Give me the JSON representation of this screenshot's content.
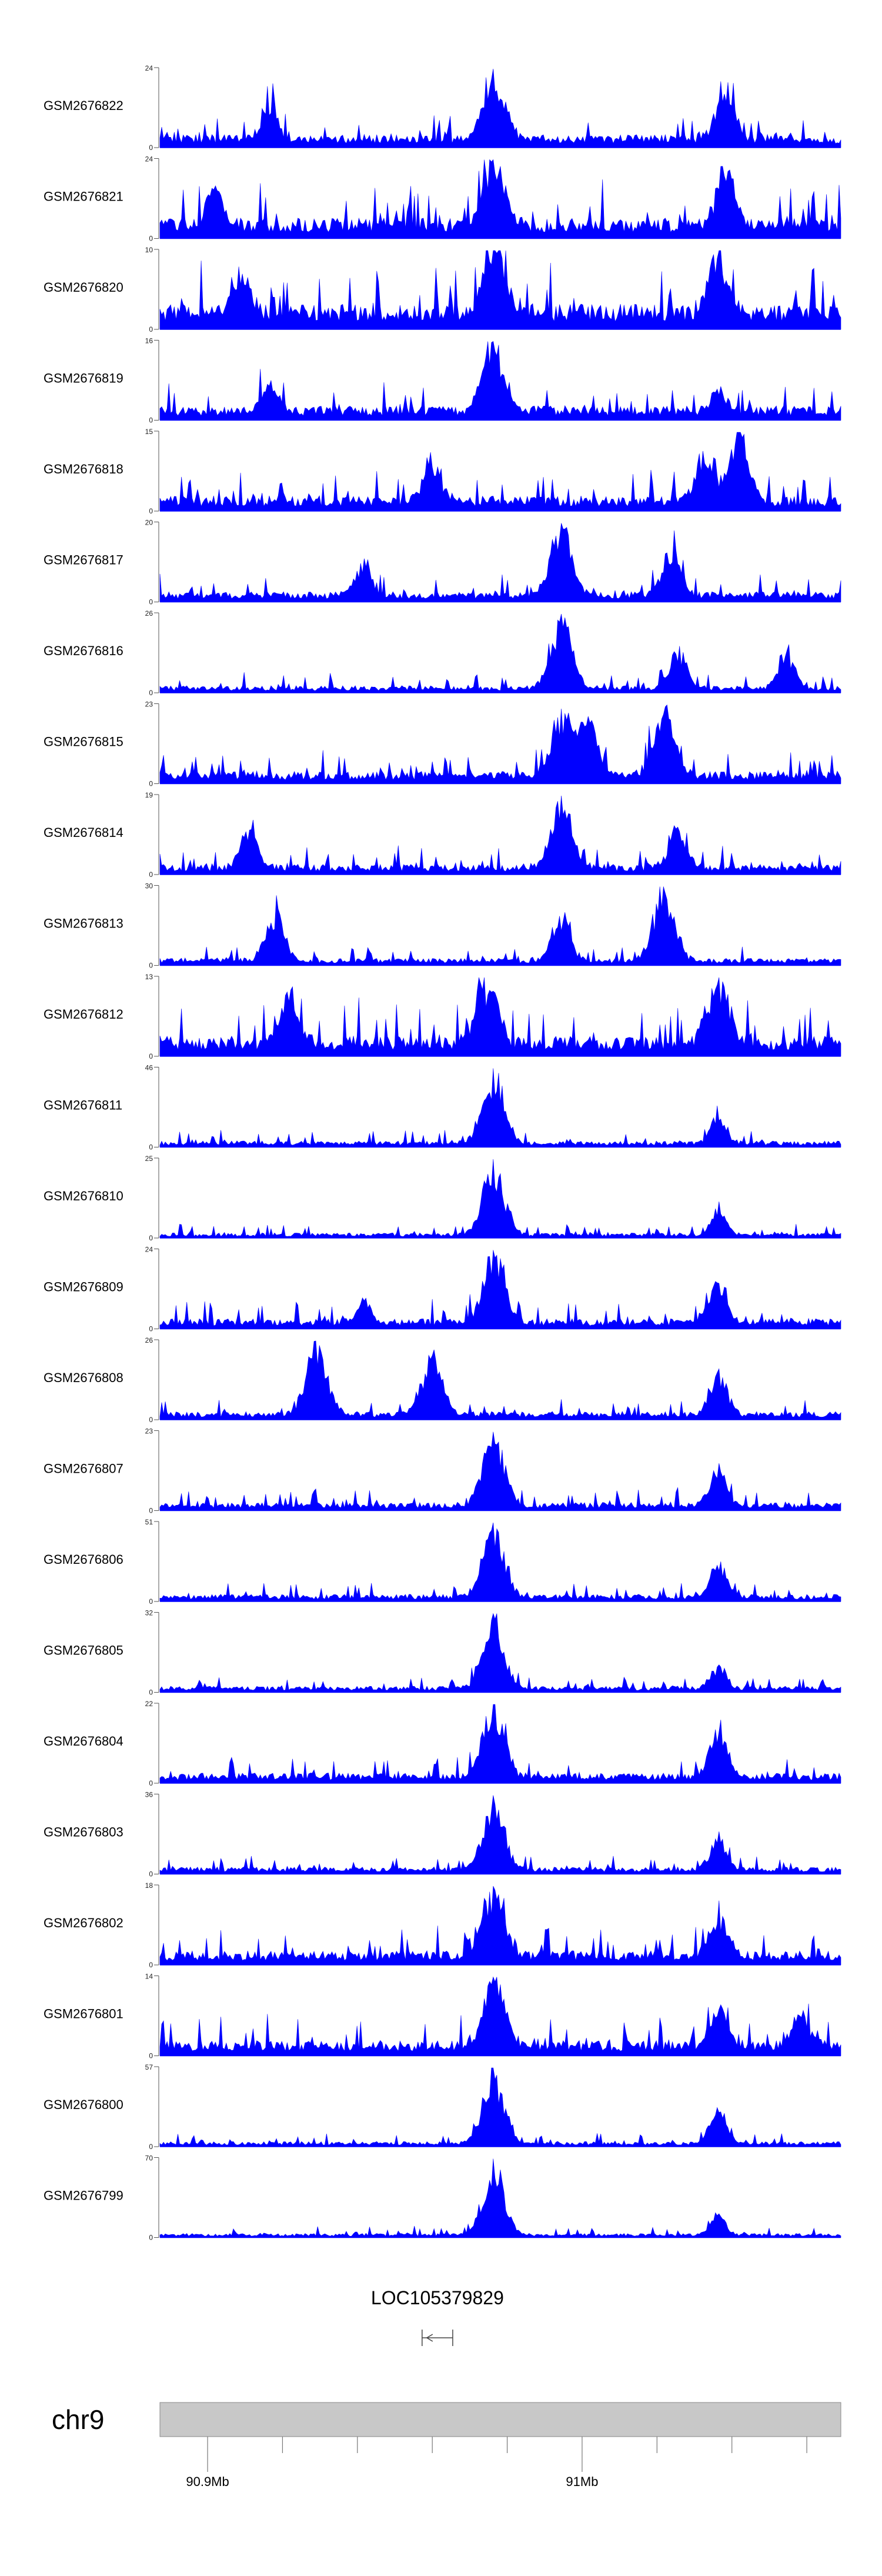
{
  "chart_data": {
    "type": "area",
    "description_color": "#0000ff",
    "tracks": [
      {
        "name": "GSM2676822",
        "ymax": 24,
        "ymin": 0,
        "peaks": [
          {
            "x": 0.49,
            "h": 1.0
          },
          {
            "x": 0.83,
            "h": 0.75
          },
          {
            "x": 0.16,
            "h": 0.42
          }
        ],
        "base": 0.13
      },
      {
        "name": "GSM2676821",
        "ymax": 24,
        "ymin": 0,
        "peaks": [
          {
            "x": 0.49,
            "h": 1.0
          },
          {
            "x": 0.83,
            "h": 0.8
          },
          {
            "x": 0.08,
            "h": 0.55
          }
        ],
        "base": 0.2
      },
      {
        "name": "GSM2676820",
        "ymax": 10,
        "ymin": 0,
        "peaks": [
          {
            "x": 0.49,
            "h": 1.0
          },
          {
            "x": 0.82,
            "h": 0.85
          },
          {
            "x": 0.12,
            "h": 0.55
          }
        ],
        "base": 0.25
      },
      {
        "name": "GSM2676819",
        "ymax": 16,
        "ymin": 0,
        "peaks": [
          {
            "x": 0.49,
            "h": 1.0
          },
          {
            "x": 0.82,
            "h": 0.35
          },
          {
            "x": 0.16,
            "h": 0.45
          }
        ],
        "base": 0.14
      },
      {
        "name": "GSM2676818",
        "ymax": 15,
        "ymin": 0,
        "peaks": [
          {
            "x": 0.85,
            "h": 1.0
          },
          {
            "x": 0.8,
            "h": 0.62
          },
          {
            "x": 0.4,
            "h": 0.6
          }
        ],
        "base": 0.15
      },
      {
        "name": "GSM2676817",
        "ymax": 20,
        "ymin": 0,
        "peaks": [
          {
            "x": 0.59,
            "h": 1.0
          },
          {
            "x": 0.75,
            "h": 0.7
          },
          {
            "x": 0.3,
            "h": 0.5
          }
        ],
        "base": 0.1
      },
      {
        "name": "GSM2676816",
        "ymax": 26,
        "ymin": 0,
        "peaks": [
          {
            "x": 0.59,
            "h": 1.0
          },
          {
            "x": 0.76,
            "h": 0.55
          },
          {
            "x": 0.92,
            "h": 0.5
          }
        ],
        "base": 0.07
      },
      {
        "name": "GSM2676815",
        "ymax": 23,
        "ymin": 0,
        "peaks": [
          {
            "x": 0.59,
            "h": 0.95
          },
          {
            "x": 0.74,
            "h": 1.0
          },
          {
            "x": 0.63,
            "h": 0.85
          }
        ],
        "base": 0.12
      },
      {
        "name": "GSM2676814",
        "ymax": 19,
        "ymin": 0,
        "peaks": [
          {
            "x": 0.59,
            "h": 1.0
          },
          {
            "x": 0.76,
            "h": 0.6
          },
          {
            "x": 0.13,
            "h": 0.55
          }
        ],
        "base": 0.1
      },
      {
        "name": "GSM2676813",
        "ymax": 30,
        "ymin": 0,
        "peaks": [
          {
            "x": 0.74,
            "h": 1.0
          },
          {
            "x": 0.59,
            "h": 0.65
          },
          {
            "x": 0.17,
            "h": 0.7
          }
        ],
        "base": 0.07
      },
      {
        "name": "GSM2676812",
        "ymax": 13,
        "ymin": 0,
        "peaks": [
          {
            "x": 0.82,
            "h": 1.0
          },
          {
            "x": 0.48,
            "h": 0.95
          },
          {
            "x": 0.19,
            "h": 0.7
          }
        ],
        "base": 0.2
      },
      {
        "name": "GSM2676811",
        "ymax": 46,
        "ymin": 0,
        "peaks": [
          {
            "x": 0.49,
            "h": 1.0
          },
          {
            "x": 0.82,
            "h": 0.4
          }
        ],
        "base": 0.06
      },
      {
        "name": "GSM2676810",
        "ymax": 25,
        "ymin": 0,
        "peaks": [
          {
            "x": 0.49,
            "h": 1.0
          },
          {
            "x": 0.82,
            "h": 0.35
          }
        ],
        "base": 0.05
      },
      {
        "name": "GSM2676809",
        "ymax": 24,
        "ymin": 0,
        "peaks": [
          {
            "x": 0.49,
            "h": 1.0
          },
          {
            "x": 0.82,
            "h": 0.6
          },
          {
            "x": 0.3,
            "h": 0.3
          }
        ],
        "base": 0.1
      },
      {
        "name": "GSM2676808",
        "ymax": 26,
        "ymin": 0,
        "peaks": [
          {
            "x": 0.23,
            "h": 1.0
          },
          {
            "x": 0.4,
            "h": 0.9
          },
          {
            "x": 0.82,
            "h": 0.6
          }
        ],
        "base": 0.08
      },
      {
        "name": "GSM2676807",
        "ymax": 23,
        "ymin": 0,
        "peaks": [
          {
            "x": 0.49,
            "h": 1.0
          },
          {
            "x": 0.82,
            "h": 0.55
          }
        ],
        "base": 0.08
      },
      {
        "name": "GSM2676806",
        "ymax": 51,
        "ymin": 0,
        "peaks": [
          {
            "x": 0.49,
            "h": 1.0
          },
          {
            "x": 0.82,
            "h": 0.5
          }
        ],
        "base": 0.07
      },
      {
        "name": "GSM2676805",
        "ymax": 32,
        "ymin": 0,
        "peaks": [
          {
            "x": 0.49,
            "h": 1.0
          },
          {
            "x": 0.82,
            "h": 0.35
          }
        ],
        "base": 0.06
      },
      {
        "name": "GSM2676804",
        "ymax": 22,
        "ymin": 0,
        "peaks": [
          {
            "x": 0.49,
            "h": 1.0
          },
          {
            "x": 0.82,
            "h": 0.65
          }
        ],
        "base": 0.1
      },
      {
        "name": "GSM2676803",
        "ymax": 36,
        "ymin": 0,
        "peaks": [
          {
            "x": 0.49,
            "h": 1.0
          },
          {
            "x": 0.82,
            "h": 0.45
          }
        ],
        "base": 0.07
      },
      {
        "name": "GSM2676802",
        "ymax": 18,
        "ymin": 0,
        "peaks": [
          {
            "x": 0.49,
            "h": 1.0
          },
          {
            "x": 0.82,
            "h": 0.55
          }
        ],
        "base": 0.14
      },
      {
        "name": "GSM2676801",
        "ymax": 14,
        "ymin": 0,
        "peaks": [
          {
            "x": 0.49,
            "h": 1.0
          },
          {
            "x": 0.82,
            "h": 0.55
          },
          {
            "x": 0.94,
            "h": 0.5
          }
        ],
        "base": 0.15
      },
      {
        "name": "GSM2676800",
        "ymax": 57,
        "ymin": 0,
        "peaks": [
          {
            "x": 0.49,
            "h": 1.0
          },
          {
            "x": 0.82,
            "h": 0.5
          }
        ],
        "base": 0.05
      },
      {
        "name": "GSM2676799",
        "ymax": 70,
        "ymin": 0,
        "peaks": [
          {
            "x": 0.49,
            "h": 1.0
          },
          {
            "x": 0.82,
            "h": 0.3
          }
        ],
        "base": 0.04
      }
    ],
    "gene": {
      "name": "LOC105379829",
      "start": 0.385,
      "end": 0.43,
      "strand": "-"
    },
    "chromosome": {
      "name": "chr9",
      "ticks": [
        {
          "pos": 0.07,
          "label": "90.9Mb"
        },
        {
          "pos": 0.62,
          "label": "91Mb"
        }
      ],
      "minor_ticks": [
        0.18,
        0.29,
        0.4,
        0.51,
        0.73,
        0.84,
        0.95
      ]
    }
  }
}
